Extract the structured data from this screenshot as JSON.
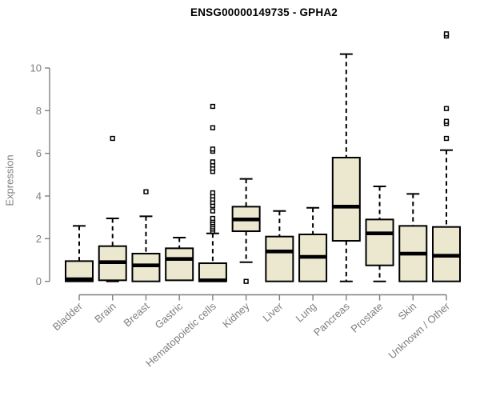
{
  "title": "ENSG00000149735 - GPHA2",
  "colors": {
    "background": "#ffffff",
    "box_fill": "#ece7cf",
    "box_stroke": "#000000",
    "median_stroke": "#000000",
    "outlier_stroke": "#000000",
    "axis_line": "#808080",
    "axis_text": "#7f7f7f",
    "title_text": "#000000"
  },
  "chart_data": {
    "type": "boxplot",
    "title": "ENSG00000149735 - GPHA2",
    "xlabel": "",
    "ylabel": "Expression",
    "ylim": [
      0,
      10
    ],
    "yticks": [
      0,
      2,
      4,
      6,
      8,
      10
    ],
    "grid": false,
    "legend": "none",
    "categories": [
      "Bladder",
      "Brain",
      "Breast",
      "Gastric",
      "Hematopoietic cells",
      "Kidney",
      "Liver",
      "Lung",
      "Pancreas",
      "Prostate",
      "Skin",
      "Unknown / Other"
    ],
    "series": [
      {
        "name": "Bladder",
        "low": 0,
        "q1": 0,
        "median": 0.1,
        "q3": 0.95,
        "high": 2.6,
        "outliers": []
      },
      {
        "name": "Brain",
        "low": 0,
        "q1": 0.05,
        "median": 0.9,
        "q3": 1.65,
        "high": 2.95,
        "outliers": [
          6.7
        ]
      },
      {
        "name": "Breast",
        "low": 0,
        "q1": 0,
        "median": 0.75,
        "q3": 1.3,
        "high": 3.05,
        "outliers": [
          4.2
        ]
      },
      {
        "name": "Gastric",
        "low": 0.05,
        "q1": 0.05,
        "median": 1.05,
        "q3": 1.55,
        "high": 2.05,
        "outliers": []
      },
      {
        "name": "Hematopoietic cells",
        "low": 0,
        "q1": 0,
        "median": 0.05,
        "q3": 0.85,
        "high": 2.25,
        "outliers": [
          2.35,
          2.45,
          2.55,
          2.65,
          2.75,
          2.85,
          2.95,
          3.3,
          3.55,
          3.7,
          3.85,
          4.0,
          4.15,
          5.15,
          5.3,
          5.45,
          5.6,
          6.1,
          6.2,
          7.2,
          8.2
        ]
      },
      {
        "name": "Kidney",
        "low": 0.9,
        "q1": 2.35,
        "median": 2.9,
        "q3": 3.5,
        "high": 4.8,
        "outliers": [
          0
        ]
      },
      {
        "name": "Liver",
        "low": 0,
        "q1": 0,
        "median": 1.4,
        "q3": 2.1,
        "high": 3.3,
        "outliers": []
      },
      {
        "name": "Lung",
        "low": 0,
        "q1": 0,
        "median": 1.15,
        "q3": 2.2,
        "high": 3.45,
        "outliers": []
      },
      {
        "name": "Pancreas",
        "low": 0,
        "q1": 1.9,
        "median": 3.5,
        "q3": 5.8,
        "high": 10.65,
        "outliers": []
      },
      {
        "name": "Prostate",
        "low": 0,
        "q1": 0.75,
        "median": 2.25,
        "q3": 2.9,
        "high": 4.45,
        "outliers": []
      },
      {
        "name": "Skin",
        "low": 0,
        "q1": 0,
        "median": 1.3,
        "q3": 2.6,
        "high": 4.1,
        "outliers": []
      },
      {
        "name": "Unknown / Other",
        "low": 0,
        "q1": 0,
        "median": 1.2,
        "q3": 2.55,
        "high": 6.15,
        "outliers": [
          6.7,
          7.4,
          7.5,
          8.1,
          11.5,
          11.6
        ]
      }
    ]
  }
}
